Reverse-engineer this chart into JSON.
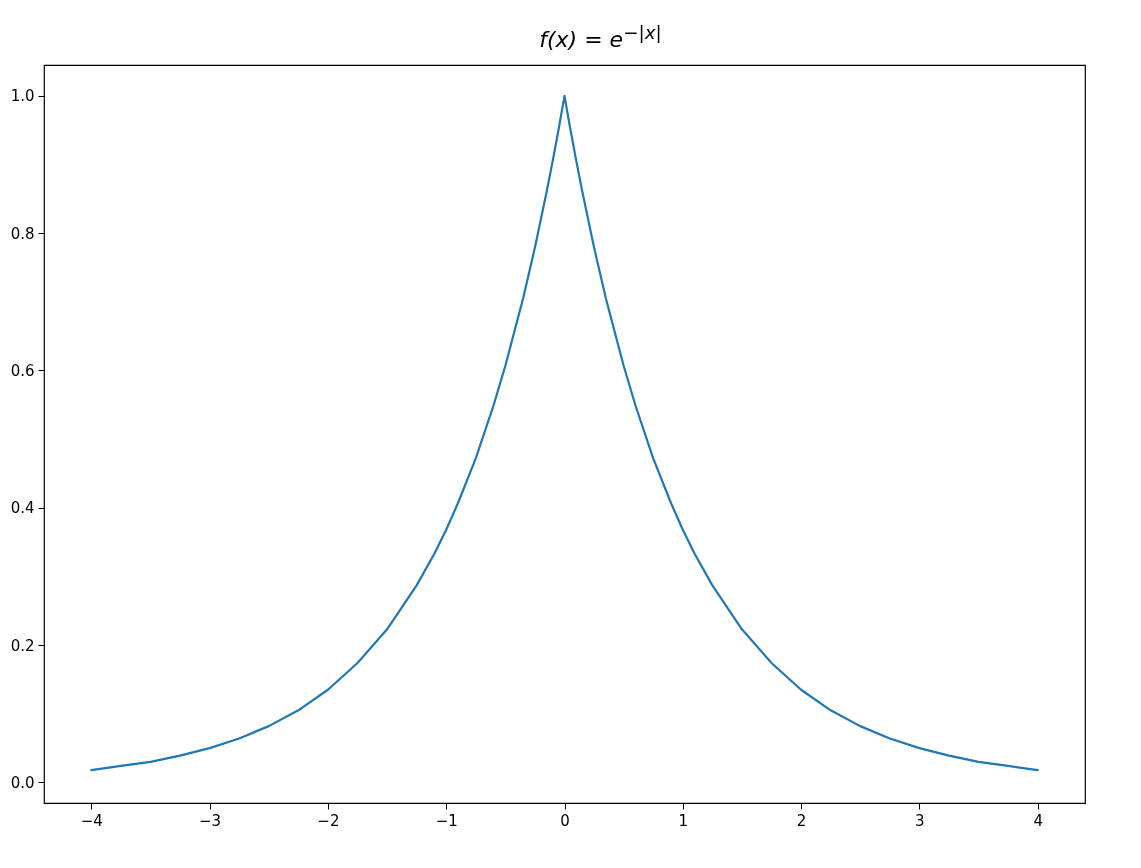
{
  "chart_data": {
    "type": "line",
    "title": "f(x) = e$^{−|x|}$",
    "x": [
      -4,
      -3.75,
      -3.5,
      -3.25,
      -3,
      -2.75,
      -2.5,
      -2.25,
      -2,
      -1.75,
      -1.5,
      -1.25,
      -1.1,
      -1,
      -0.9,
      -0.75,
      -0.6,
      -0.5,
      -0.35,
      -0.25,
      -0.15,
      -0.1,
      -0.05,
      0,
      0.05,
      0.1,
      0.15,
      0.25,
      0.35,
      0.5,
      0.6,
      0.75,
      0.9,
      1,
      1.1,
      1.25,
      1.5,
      1.75,
      2,
      2.25,
      2.5,
      2.75,
      3,
      3.25,
      3.5,
      3.75,
      4
    ],
    "series": [
      {
        "color": "#1f77b4",
        "values": [
          0.018,
          0.024,
          0.03,
          0.039,
          0.05,
          0.064,
          0.082,
          0.105,
          0.135,
          0.174,
          0.223,
          0.287,
          0.333,
          0.368,
          0.407,
          0.472,
          0.549,
          0.607,
          0.705,
          0.779,
          0.861,
          0.905,
          0.951,
          1.0,
          0.951,
          0.905,
          0.861,
          0.779,
          0.705,
          0.607,
          0.549,
          0.472,
          0.407,
          0.368,
          0.333,
          0.287,
          0.223,
          0.174,
          0.135,
          0.105,
          0.082,
          0.064,
          0.05,
          0.039,
          0.03,
          0.024,
          0.018
        ]
      }
    ],
    "xlim": [
      -4.4,
      4.4
    ],
    "ylim": [
      -0.03,
      1.045
    ],
    "xticks": [
      {
        "value": -4,
        "label": "−4"
      },
      {
        "value": -3,
        "label": "−3"
      },
      {
        "value": -2,
        "label": "−2"
      },
      {
        "value": -1,
        "label": "−1"
      },
      0,
      1,
      2,
      3,
      4
    ],
    "yticks": [
      {
        "value": 0,
        "label": "0.0"
      },
      {
        "value": 0.2,
        "label": "0.2"
      },
      {
        "value": 0.4,
        "label": "0.4"
      },
      {
        "value": 0.6,
        "label": "0.6"
      },
      {
        "value": 0.8,
        "label": "0.8"
      },
      {
        "value": 1,
        "label": "1.0"
      }
    ],
    "grid": false,
    "marker": "none",
    "line_style": "solid"
  }
}
